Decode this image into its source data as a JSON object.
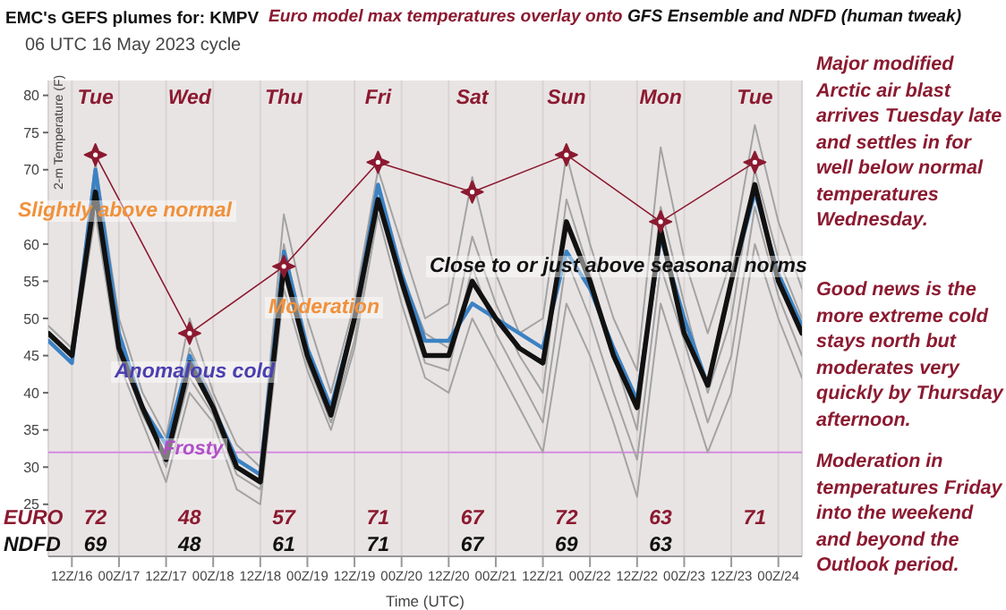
{
  "chart_data": {
    "type": "line",
    "title": "EMC's GEFS plumes for: KMPV",
    "subtitle": "06 UTC 16 May 2023 cycle",
    "xlabel": "Time (UTC)",
    "ylabel": "2-m Temperature (F)",
    "annotations": [
      "Euro model max temperatures overlay onto",
      "GFS Ensemble and NDFD (human tweak)",
      "Tue",
      "Wed",
      "Thu",
      "Fri",
      "Sat",
      "Sun",
      "Mon",
      "Tue",
      "Slightly above normal",
      "Anomalous cold",
      "Moderation",
      "Close to or just above seasonal norms",
      "Major modified Arctic air blast arrives Tuesday late and settles in for well below normal temperatures Wednesday.",
      "Good news is the more extreme cold stays north but moderates very quickly by Thursday afternoon.",
      "Moderation in temperatures Friday into the weekend and beyond the Outlook period.",
      "NDFD",
      "69",
      "48",
      "61",
      "71",
      "67",
      "69",
      "63",
      "72",
      "48",
      "57",
      "71",
      "67",
      "72",
      "63",
      "71"
    ],
    "x": [
      "2023-05-16T06:00",
      "2023-05-16T12:00",
      "2023-05-16T18:00",
      "2023-05-17T00:00",
      "2023-05-17T06:00",
      "2023-05-17T12:00",
      "2023-05-17T18:00",
      "2023-05-18T00:00",
      "2023-05-18T06:00",
      "2023-05-18T12:00",
      "2023-05-18T18:00",
      "2023-05-19T00:00",
      "2023-05-19T06:00",
      "2023-05-19T12:00",
      "2023-05-19T18:00",
      "2023-05-20T00:00",
      "2023-05-20T06:00",
      "2023-05-20T12:00",
      "2023-05-20T18:00",
      "2023-05-21T00:00",
      "2023-05-21T06:00",
      "2023-05-21T12:00",
      "2023-05-21T18:00",
      "2023-05-22T00:00",
      "2023-05-22T06:00",
      "2023-05-22T12:00",
      "2023-05-22T18:00",
      "2023-05-23T00:00",
      "2023-05-23T06:00",
      "2023-05-23T12:00",
      "2023-05-23T18:00",
      "2023-05-24T00:00",
      "2023-05-24T06:00"
    ],
    "xlim": [
      "2023-05-16T06:00",
      "2023-05-24T06:00"
    ],
    "xticks": [
      {
        "value": "2023-05-16T12:00",
        "label": "12Z/16"
      },
      {
        "value": "2023-05-17T00:00",
        "label": "00Z/17"
      },
      {
        "value": "2023-05-17T12:00",
        "label": "12Z/17"
      },
      {
        "value": "2023-05-18T00:00",
        "label": "00Z/18"
      },
      {
        "value": "2023-05-18T12:00",
        "label": "12Z/18"
      },
      {
        "value": "2023-05-19T00:00",
        "label": "00Z/19"
      },
      {
        "value": "2023-05-19T12:00",
        "label": "12Z/19"
      },
      {
        "value": "2023-05-20T00:00",
        "label": "00Z/20"
      },
      {
        "value": "2023-05-20T12:00",
        "label": "12Z/20"
      },
      {
        "value": "2023-05-21T00:00",
        "label": "00Z/21"
      },
      {
        "value": "2023-05-21T12:00",
        "label": "12Z/21"
      },
      {
        "value": "2023-05-22T00:00",
        "label": "00Z/22"
      },
      {
        "value": "2023-05-22T12:00",
        "label": "12Z/22"
      },
      {
        "value": "2023-05-23T00:00",
        "label": "00Z/23"
      },
      {
        "value": "2023-05-23T12:00",
        "label": "12Z/23"
      },
      {
        "value": "2023-05-24T00:00",
        "label": "00Z/24"
      }
    ],
    "ylim": [
      18,
      82
    ],
    "yticks": [
      25,
      30,
      35,
      40,
      45,
      50,
      55,
      60,
      70,
      75,
      80
    ],
    "grid": "x",
    "marker": "none",
    "ref_lines": [
      {
        "axis": "y",
        "value": 32,
        "label": "Frosty",
        "color": "#d58be0"
      }
    ],
    "series": [
      {
        "color": "#a3a3a3",
        "values": [
          49,
          46,
          71,
          50,
          40,
          34,
          50,
          40,
          33,
          30,
          64,
          50,
          40,
          52,
          70,
          60,
          50,
          52,
          69,
          56,
          48,
          50,
          72,
          60,
          50,
          43,
          73,
          58,
          48,
          58,
          76,
          63,
          54
        ]
      },
      {
        "color": "#a3a3a3",
        "values": [
          47,
          44,
          64,
          44,
          36,
          28,
          40,
          36,
          27,
          25,
          54,
          43,
          35,
          46,
          64,
          52,
          42,
          40,
          50,
          44,
          38,
          32,
          52,
          45,
          36,
          26,
          52,
          42,
          32,
          40,
          60,
          50,
          42
        ]
      },
      {
        "color": "#a3a3a3",
        "values": [
          48,
          45,
          68,
          46,
          37,
          31,
          46,
          39,
          30,
          28,
          60,
          46,
          38,
          49,
          68,
          56,
          48,
          46,
          61,
          52,
          45,
          40,
          66,
          56,
          45,
          35,
          65,
          52,
          40,
          50,
          70,
          58,
          50
        ]
      },
      {
        "color": "#a3a3a3",
        "values": [
          48,
          45,
          66,
          45,
          38,
          30,
          42,
          37,
          29,
          27,
          56,
          44,
          36,
          47,
          66,
          54,
          44,
          43,
          57,
          48,
          42,
          36,
          58,
          50,
          40,
          31,
          57,
          47,
          36,
          45,
          65,
          53,
          45
        ]
      },
      {
        "color": "#3b82c4",
        "values": [
          47,
          44,
          70,
          48,
          38,
          33,
          45,
          38,
          31,
          29,
          59,
          46,
          38,
          50,
          68,
          56,
          47,
          47,
          52,
          50,
          48,
          46,
          59,
          54,
          46,
          39,
          61,
          50,
          41,
          55,
          67,
          56,
          49
        ]
      },
      {
        "color": "#111111",
        "values": [
          48,
          45,
          67,
          46,
          38,
          31,
          44,
          38,
          30,
          28,
          57,
          45,
          37,
          50,
          66,
          55,
          45,
          45,
          55,
          50,
          46,
          44,
          63,
          55,
          45,
          38,
          62,
          48,
          41,
          55,
          68,
          55,
          48
        ]
      },
      {
        "name": "EURO",
        "type": "line",
        "marker": "star",
        "color": "#8b1a30",
        "x": [
          "2023-05-16T18:00",
          "2023-05-17T18:00",
          "2023-05-18T18:00",
          "2023-05-19T18:00",
          "2023-05-20T18:00",
          "2023-05-21T18:00",
          "2023-05-22T18:00",
          "2023-05-23T18:00"
        ],
        "values": [
          72,
          48,
          57,
          71,
          67,
          72,
          63,
          71
        ]
      }
    ]
  }
}
